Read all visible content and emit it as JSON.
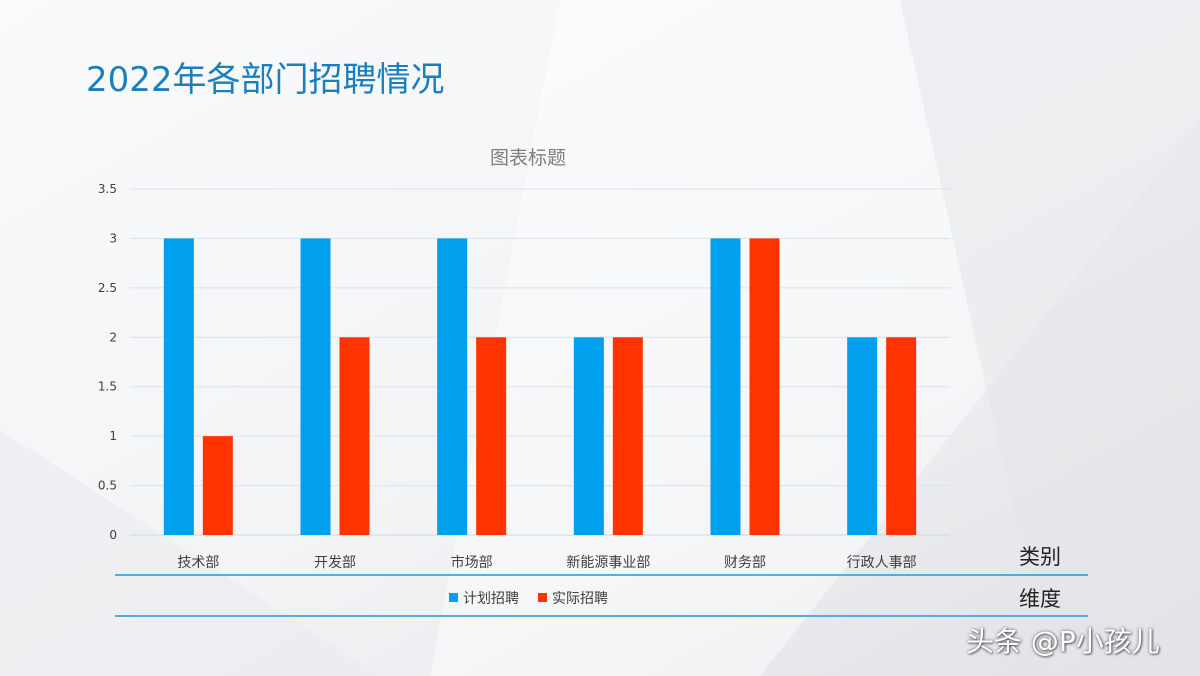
{
  "slide": {
    "title": "2022年各部门招聘情况",
    "watermark": "头条 @P小孩儿"
  },
  "annotations": {
    "category_label": "类别",
    "dimension_label": "维度"
  },
  "colors": {
    "title": "#1a7fbf",
    "planned": "#00a0ef",
    "actual": "#ff3300",
    "divider": "#2a96d0",
    "grid": "#d9e4ec"
  },
  "chart_data": {
    "type": "bar",
    "title": "图表标题",
    "categories": [
      "技术部",
      "开发部",
      "市场部",
      "新能源事业部",
      "财务部",
      "行政人事部"
    ],
    "series": [
      {
        "name": "计划招聘",
        "values": [
          3,
          3,
          3,
          2,
          3,
          2
        ]
      },
      {
        "name": "实际招聘",
        "values": [
          1,
          2,
          2,
          2,
          3,
          2
        ]
      }
    ],
    "ylim": [
      0,
      3.5
    ],
    "yticks": [
      "0",
      "0.5",
      "1",
      "1.5",
      "2",
      "2.5",
      "3",
      "3.5"
    ],
    "grid": true,
    "legend": "bottom"
  }
}
